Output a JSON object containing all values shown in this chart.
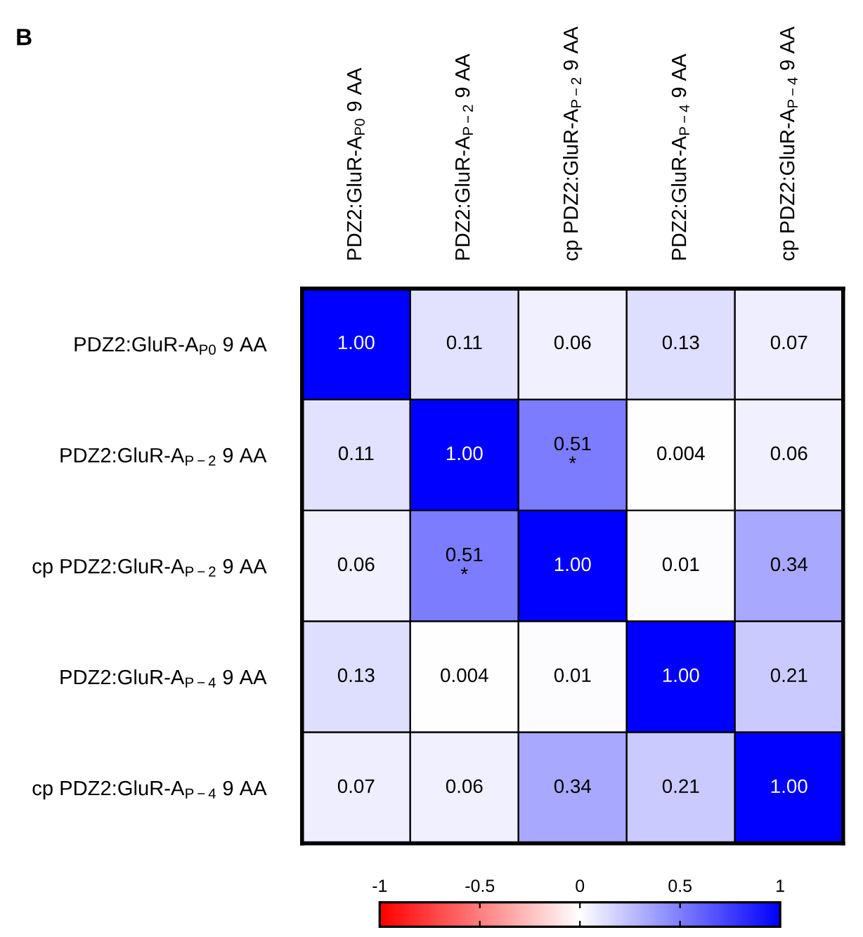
{
  "chart_data": {
    "type": "heatmap",
    "annotations": [
      "B"
    ],
    "categories": [
      "PDZ2:GluR-A$_{P0}$ 9 AA",
      "PDZ2:GluR-A$_{P−2}$ 9 AA",
      "cp PDZ2:GluR-A$_{P−2}$ 9 AA",
      "PDZ2:GluR-A$_{P−4}$ 9 AA",
      "cp PDZ2:GluR-A$_{P−4}$ 9 AA"
    ],
    "y_categories": [
      "PDZ2:GluR-A$_{P0}$ 9 AA",
      "PDZ2:GluR-A$_{P−2}$ 9 AA",
      "cp PDZ2:GluR-A$_{P−2}$ 9 AA",
      "PDZ2:GluR-A$_{P−4}$ 9 AA",
      "cp PDZ2:GluR-A$_{P−4}$ 9 AA"
    ],
    "cells": [
      [
        1.0,
        0.11,
        0.06,
        0.13,
        0.07
      ],
      [
        0.11,
        1.0,
        0.51,
        0.004,
        0.06
      ],
      [
        0.06,
        0.51,
        1.0,
        0.01,
        0.34
      ],
      [
        0.13,
        0.004,
        0.01,
        1.0,
        0.21
      ],
      [
        0.07,
        0.06,
        0.34,
        0.21,
        1.0
      ]
    ],
    "cell_labels": [
      [
        "1.00",
        "0.11",
        "0.06",
        "0.13",
        "0.07"
      ],
      [
        "0.11",
        "1.00",
        "0.51\n*",
        "0.004",
        "0.06"
      ],
      [
        "0.06",
        "0.51\n*",
        "1.00",
        "0.01",
        "0.34"
      ],
      [
        "0.13",
        "0.004",
        "0.01",
        "1.00",
        "0.21"
      ],
      [
        "0.07",
        "0.06",
        "0.34",
        "0.21",
        "1.00"
      ]
    ],
    "clim": [
      -1,
      1
    ],
    "cticks": [
      -1,
      -0.5,
      0,
      0.5,
      1
    ]
  }
}
